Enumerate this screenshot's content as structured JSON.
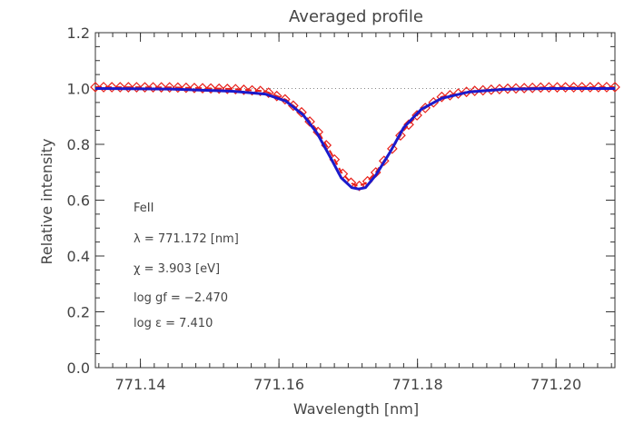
{
  "chart_data": {
    "type": "line",
    "title": "Averaged profile",
    "xlabel": "Wavelength [nm]",
    "ylabel": "Relative intensity",
    "xlim": [
      771.1335,
      771.2085
    ],
    "ylim": [
      0.0,
      1.2
    ],
    "x_ticks": [
      771.14,
      771.16,
      771.18,
      771.2
    ],
    "x_tick_labels": [
      "771.14",
      "771.16",
      "771.18",
      "771.20"
    ],
    "y_ticks": [
      0.0,
      0.2,
      0.4,
      0.6,
      0.8,
      1.0,
      1.2
    ],
    "y_tick_labels": [
      "0.0",
      "0.2",
      "0.4",
      "0.6",
      "0.8",
      "1.0",
      "1.2"
    ],
    "grid": false,
    "reference_level": 1.0,
    "series": [
      {
        "style": "dashed-with-diamond-markers",
        "color": "#e8201a",
        "x": [
          771.1335,
          771.1445,
          771.1535,
          771.158,
          771.161,
          771.1635,
          771.1655,
          771.1675,
          771.169,
          771.1705,
          771.1715,
          771.1725,
          771.174,
          771.176,
          771.178,
          771.1805,
          771.1835,
          771.1875,
          771.1925,
          771.1985,
          771.2085
        ],
        "y": [
          1.005,
          1.004,
          0.998,
          0.99,
          0.96,
          0.91,
          0.85,
          0.77,
          0.7,
          0.66,
          0.65,
          0.66,
          0.7,
          0.77,
          0.85,
          0.92,
          0.97,
          0.99,
          0.999,
          1.004,
          1.005
        ]
      },
      {
        "style": "solid",
        "color": "#1a1acc",
        "x": [
          771.1335,
          771.1445,
          771.1535,
          771.158,
          771.161,
          771.1635,
          771.1655,
          771.1675,
          771.169,
          771.1705,
          771.1715,
          771.1725,
          771.174,
          771.176,
          771.178,
          771.1805,
          771.1835,
          771.1875,
          771.1925,
          771.1985,
          771.2085
        ],
        "y": [
          1.0,
          0.998,
          0.99,
          0.98,
          0.955,
          0.905,
          0.84,
          0.75,
          0.68,
          0.645,
          0.64,
          0.645,
          0.69,
          0.77,
          0.86,
          0.925,
          0.965,
          0.988,
          0.997,
          1.0,
          1.0
        ]
      }
    ],
    "annotations": [
      "FeII",
      "λ = 771.172 [nm]",
      "χ =  3.903 [eV]",
      "log gf = −2.470",
      "log ε =  7.410"
    ]
  }
}
